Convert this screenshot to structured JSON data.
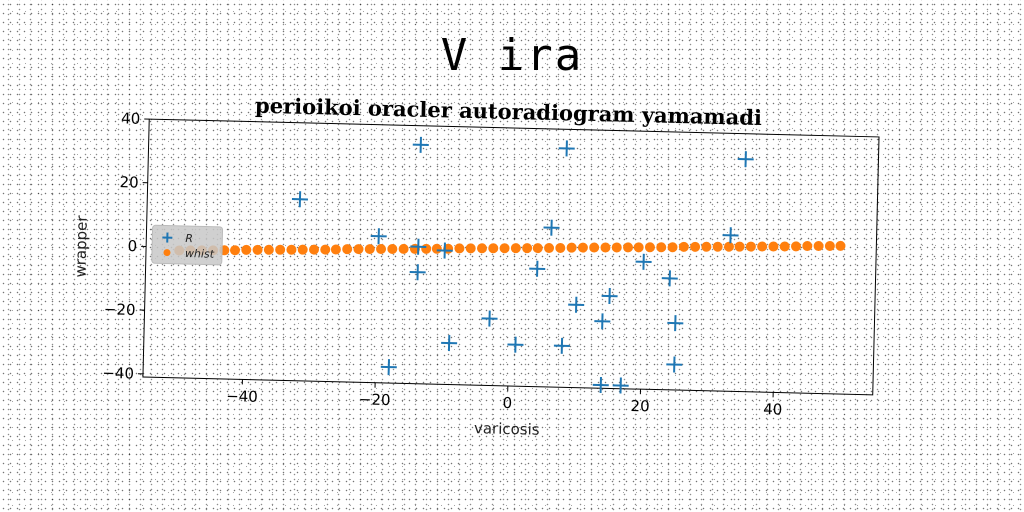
{
  "figure": {
    "suptitle": "V ira"
  },
  "chart_data": {
    "type": "scatter",
    "title": "perioikoi oracler autoradiogram yamamadi",
    "xlabel": "varicosis",
    "ylabel": "wrapper",
    "xlim": [
      -55,
      55
    ],
    "ylim": [
      -41,
      40
    ],
    "xticks": [
      -40,
      -20,
      0,
      20,
      40
    ],
    "yticks": [
      -40,
      -20,
      0,
      20,
      40
    ],
    "xtick_labels": [
      "−40",
      "−20",
      "0",
      "20",
      "40"
    ],
    "ytick_labels": [
      "−40",
      "−20",
      "0",
      "20",
      "40"
    ],
    "grid": false,
    "legend_position": "center-left",
    "series": [
      {
        "name": "R",
        "marker": "plus",
        "color": "#1f77b4",
        "x": [
          -32,
          -14,
          8,
          35,
          6,
          33,
          -20,
          -14,
          -10,
          4,
          20,
          24,
          -14,
          15,
          10,
          14,
          25,
          -3,
          -9,
          1,
          8,
          25,
          -18,
          14,
          17
        ],
        "y": [
          16,
          34,
          34,
          32,
          9,
          8,
          5,
          2,
          1,
          -4,
          -1,
          -6,
          -6,
          -12,
          -15,
          -20,
          -20,
          -20,
          -28,
          -28,
          -28,
          -33,
          -36,
          -40,
          -40
        ]
      },
      {
        "name": "whist",
        "marker": "circle",
        "color": "#ff7f0e",
        "x": [
          -50,
          -48.3,
          -46.6,
          -44.9,
          -43.2,
          -41.6,
          -39.9,
          -38.2,
          -36.5,
          -34.8,
          -33.1,
          -31.4,
          -29.7,
          -28,
          -26.4,
          -24.7,
          -23,
          -21.3,
          -19.6,
          -17.9,
          -16.2,
          -14.5,
          -12.8,
          -11.2,
          -9.5,
          -7.8,
          -6.1,
          -4.4,
          -2.7,
          -1,
          0.7,
          2.4,
          4,
          5.7,
          7.4,
          9.1,
          10.8,
          12.5,
          14.2,
          15.9,
          17.6,
          19.2,
          20.9,
          22.6,
          24.3,
          26,
          27.7,
          29.4,
          31.1,
          32.8,
          34.4,
          36.1,
          37.8,
          39.5,
          41.2,
          42.9,
          44.6,
          46.3,
          48,
          49.6
        ],
        "y": [
          -1,
          -0.9,
          -0.8,
          -0.7,
          -0.6,
          -0.5,
          -0.3,
          -0.2,
          -0.1,
          0,
          0.1,
          0.2,
          0.3,
          0.4,
          0.5,
          0.7,
          0.8,
          0.9,
          1,
          1.1,
          1.2,
          1.3,
          1.4,
          1.5,
          1.6,
          1.8,
          1.9,
          2,
          2.1,
          2.2,
          2.3,
          2.4,
          2.5,
          2.6,
          2.7,
          2.9,
          3,
          3.1,
          3.2,
          3.3,
          3.4,
          3.5,
          3.6,
          3.7,
          3.8,
          4,
          4.1,
          4.2,
          4.3,
          4.4,
          4.5,
          4.6,
          4.7,
          4.8,
          4.9,
          5,
          5.2,
          5.3,
          5.4,
          5.5
        ]
      }
    ]
  }
}
